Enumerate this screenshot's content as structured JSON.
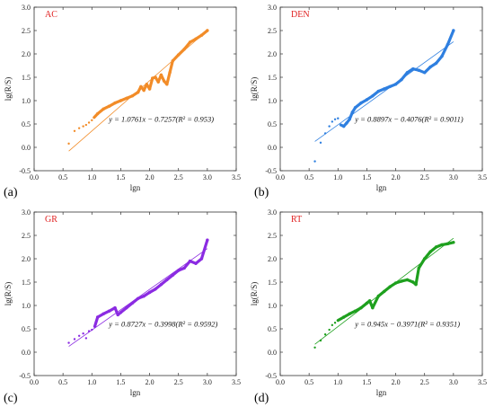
{
  "chart_data": [
    {
      "type": "scatter",
      "panel_label": "(a)",
      "title": "AC",
      "color": "#F28C28",
      "xlabel": "lgn",
      "ylabel": "lg(R/S)",
      "xlim": [
        0,
        3.5
      ],
      "ylim": [
        -0.5,
        3.0
      ],
      "xticks": [
        "0.0",
        "0.5",
        "1.0",
        "1.5",
        "2.0",
        "2.5",
        "3.0",
        "3.5"
      ],
      "yticks": [
        "-0.5",
        "0.0",
        "0.5",
        "1.0",
        "1.5",
        "2.0",
        "2.5",
        "3.0"
      ],
      "equation": "y = 1.0761x − 0.7257(R² = 0.953)",
      "fit": {
        "slope": 1.0761,
        "intercept": -0.7257
      },
      "series": [
        {
          "points": [
            [
              0.6,
              0.08
            ],
            [
              0.7,
              0.35
            ],
            [
              0.78,
              0.41
            ],
            [
              0.85,
              0.45
            ],
            [
              0.9,
              0.48
            ],
            [
              0.95,
              0.53
            ],
            [
              1.0,
              0.58
            ],
            [
              1.04,
              0.64
            ],
            [
              1.1,
              0.72
            ],
            [
              1.2,
              0.82
            ],
            [
              1.3,
              0.88
            ],
            [
              1.4,
              0.95
            ],
            [
              1.5,
              1.0
            ],
            [
              1.6,
              1.05
            ],
            [
              1.7,
              1.1
            ],
            [
              1.8,
              1.18
            ],
            [
              1.85,
              1.3
            ],
            [
              1.9,
              1.22
            ],
            [
              1.95,
              1.35
            ],
            [
              2.0,
              1.25
            ],
            [
              2.05,
              1.48
            ],
            [
              2.1,
              1.5
            ],
            [
              2.15,
              1.4
            ],
            [
              2.2,
              1.55
            ],
            [
              2.25,
              1.42
            ],
            [
              2.3,
              1.35
            ],
            [
              2.35,
              1.6
            ],
            [
              2.4,
              1.85
            ],
            [
              2.5,
              1.98
            ],
            [
              2.6,
              2.1
            ],
            [
              2.7,
              2.25
            ],
            [
              2.8,
              2.32
            ],
            [
              2.9,
              2.4
            ],
            [
              3.0,
              2.5
            ]
          ]
        }
      ]
    },
    {
      "type": "scatter",
      "panel_label": "(b)",
      "title": "DEN",
      "color": "#2E7FE0",
      "xlabel": "lgn",
      "ylabel": "lg(R/S)",
      "xlim": [
        0,
        3.5
      ],
      "ylim": [
        -0.5,
        3.0
      ],
      "xticks": [
        "0.0",
        "0.5",
        "1.0",
        "1.5",
        "2.0",
        "2.5",
        "3.0",
        "3.5"
      ],
      "yticks": [
        "-0.5",
        "0.0",
        "0.5",
        "1.0",
        "1.5",
        "2.0",
        "2.5",
        "3.0"
      ],
      "equation": "y = 0.8897x − 0.4076(R² = 0.9011)",
      "fit": {
        "slope": 0.8897,
        "intercept": -0.4076
      },
      "series": [
        {
          "points": [
            [
              0.6,
              -0.3
            ],
            [
              0.7,
              0.1
            ],
            [
              0.78,
              0.3
            ],
            [
              0.85,
              0.45
            ],
            [
              0.9,
              0.55
            ],
            [
              0.95,
              0.6
            ],
            [
              1.0,
              0.62
            ],
            [
              1.05,
              0.48
            ],
            [
              1.1,
              0.45
            ],
            [
              1.15,
              0.52
            ],
            [
              1.2,
              0.6
            ],
            [
              1.25,
              0.75
            ],
            [
              1.3,
              0.85
            ],
            [
              1.4,
              0.95
            ],
            [
              1.5,
              1.02
            ],
            [
              1.6,
              1.1
            ],
            [
              1.7,
              1.2
            ],
            [
              1.8,
              1.25
            ],
            [
              1.9,
              1.3
            ],
            [
              2.0,
              1.35
            ],
            [
              2.1,
              1.45
            ],
            [
              2.2,
              1.6
            ],
            [
              2.3,
              1.68
            ],
            [
              2.4,
              1.65
            ],
            [
              2.5,
              1.6
            ],
            [
              2.6,
              1.72
            ],
            [
              2.7,
              1.8
            ],
            [
              2.8,
              1.95
            ],
            [
              2.9,
              2.2
            ],
            [
              3.0,
              2.5
            ]
          ]
        }
      ]
    },
    {
      "type": "scatter",
      "panel_label": "(c)",
      "title": "GR",
      "color": "#8B2BE2",
      "xlabel": "lgn",
      "ylabel": "lg(R/S)",
      "xlim": [
        0,
        3.5
      ],
      "ylim": [
        -0.5,
        3.0
      ],
      "xticks": [
        "0.0",
        "0.5",
        "1.0",
        "1.5",
        "2.0",
        "2.5",
        "3.0",
        "3.5"
      ],
      "yticks": [
        "-0.5",
        "0.0",
        "0.5",
        "1.0",
        "1.5",
        "2.0",
        "2.5",
        "3.0"
      ],
      "equation": "y = 0.8727x − 0.3998(R² = 0.9592)",
      "fit": {
        "slope": 0.8727,
        "intercept": -0.3998
      },
      "series": [
        {
          "points": [
            [
              0.6,
              0.2
            ],
            [
              0.7,
              0.28
            ],
            [
              0.78,
              0.35
            ],
            [
              0.85,
              0.4
            ],
            [
              0.9,
              0.3
            ],
            [
              0.95,
              0.45
            ],
            [
              1.0,
              0.48
            ],
            [
              1.05,
              0.55
            ],
            [
              1.1,
              0.75
            ],
            [
              1.2,
              0.82
            ],
            [
              1.3,
              0.88
            ],
            [
              1.4,
              0.95
            ],
            [
              1.45,
              0.8
            ],
            [
              1.5,
              0.85
            ],
            [
              1.6,
              0.95
            ],
            [
              1.7,
              1.05
            ],
            [
              1.8,
              1.15
            ],
            [
              1.9,
              1.2
            ],
            [
              2.0,
              1.28
            ],
            [
              2.1,
              1.35
            ],
            [
              2.2,
              1.45
            ],
            [
              2.3,
              1.55
            ],
            [
              2.4,
              1.65
            ],
            [
              2.5,
              1.75
            ],
            [
              2.6,
              1.8
            ],
            [
              2.7,
              1.95
            ],
            [
              2.8,
              1.9
            ],
            [
              2.9,
              2.0
            ],
            [
              3.0,
              2.4
            ]
          ]
        }
      ]
    },
    {
      "type": "scatter",
      "panel_label": "(d)",
      "title": "RT",
      "color": "#1EA01E",
      "xlabel": "lgn",
      "ylabel": "lg(R/S)",
      "xlim": [
        0,
        3.5
      ],
      "ylim": [
        -0.5,
        3.0
      ],
      "xticks": [
        "0.0",
        "0.5",
        "1.0",
        "1.5",
        "2.0",
        "2.5",
        "3.0",
        "3.5"
      ],
      "yticks": [
        "-0.5",
        "0.0",
        "0.5",
        "1.0",
        "1.5",
        "2.0",
        "2.5",
        "3.0"
      ],
      "equation": "y = 0.945x − 0.3971(R² = 0.9351)",
      "fit": {
        "slope": 0.945,
        "intercept": -0.3971
      },
      "series": [
        {
          "points": [
            [
              0.6,
              0.1
            ],
            [
              0.7,
              0.25
            ],
            [
              0.78,
              0.38
            ],
            [
              0.85,
              0.48
            ],
            [
              0.9,
              0.58
            ],
            [
              0.95,
              0.63
            ],
            [
              1.0,
              0.68
            ],
            [
              1.1,
              0.75
            ],
            [
              1.2,
              0.82
            ],
            [
              1.3,
              0.88
            ],
            [
              1.4,
              0.95
            ],
            [
              1.5,
              1.05
            ],
            [
              1.55,
              1.1
            ],
            [
              1.6,
              0.95
            ],
            [
              1.7,
              1.2
            ],
            [
              1.8,
              1.3
            ],
            [
              1.9,
              1.4
            ],
            [
              2.0,
              1.48
            ],
            [
              2.1,
              1.52
            ],
            [
              2.2,
              1.55
            ],
            [
              2.3,
              1.5
            ],
            [
              2.35,
              1.45
            ],
            [
              2.4,
              1.8
            ],
            [
              2.5,
              2.0
            ],
            [
              2.6,
              2.15
            ],
            [
              2.7,
              2.25
            ],
            [
              2.8,
              2.3
            ],
            [
              2.9,
              2.32
            ],
            [
              3.0,
              2.35
            ]
          ]
        }
      ]
    }
  ]
}
